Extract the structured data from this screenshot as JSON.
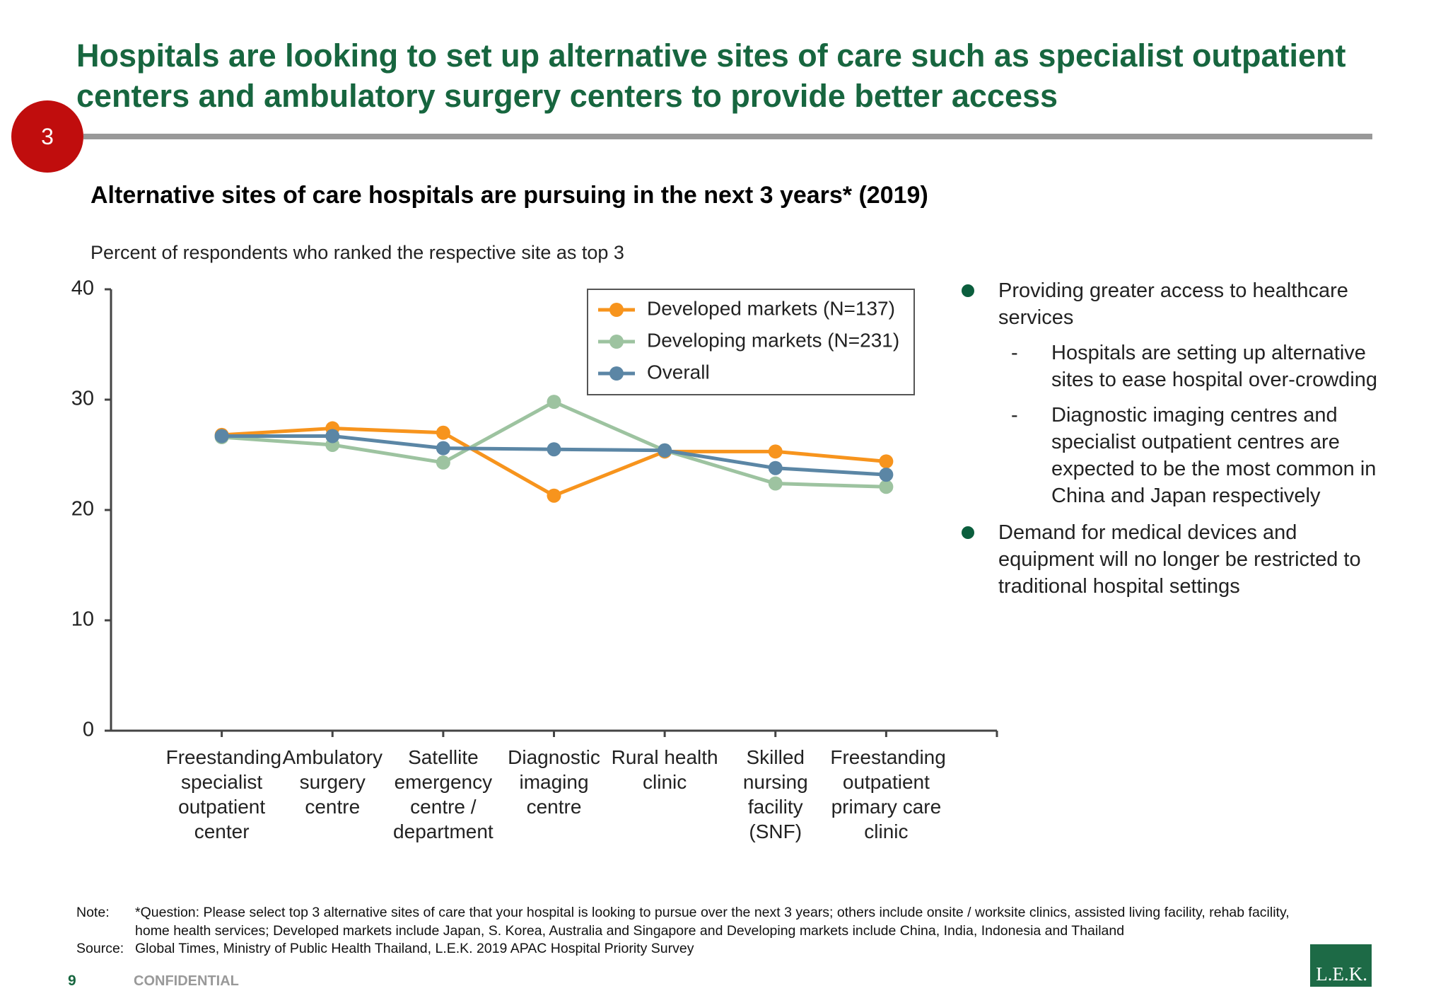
{
  "header": {
    "badge": "3",
    "title": "Hospitals are looking to set up alternative sites of care such as specialist outpatient centers and ambulatory surgery centers to provide better access"
  },
  "chart_data": {
    "type": "line",
    "title": "Alternative sites of care hospitals are pursuing in the next 3 years* (2019)",
    "subtitle": "Percent of respondents who ranked the respective site as top 3",
    "categories": [
      "Freestanding specialist outpatient center",
      "Ambulatory surgery centre",
      "Satellite emergency centre / department",
      "Diagnostic imaging centre",
      "Rural health clinic",
      "Skilled nursing facility (SNF)",
      "Freestanding outpatient primary care clinic"
    ],
    "series": [
      {
        "name": "Developed markets (N=137)",
        "color": "#f7941d",
        "values": [
          26.8,
          27.4,
          27.0,
          21.3,
          25.3,
          25.3,
          24.4
        ]
      },
      {
        "name": "Developing markets (N=231)",
        "color": "#9dc3a0",
        "values": [
          26.6,
          25.9,
          24.3,
          29.8,
          25.4,
          22.4,
          22.1
        ]
      },
      {
        "name": "Overall",
        "color": "#5b86a5",
        "values": [
          26.7,
          26.7,
          25.6,
          25.5,
          25.4,
          23.8,
          23.2
        ]
      }
    ],
    "ylim": [
      0,
      40
    ],
    "yticks": [
      0,
      10,
      20,
      30,
      40
    ],
    "grid": false,
    "legend": "top-right"
  },
  "bullets": [
    {
      "text": "Providing greater access to healthcare services",
      "subs": [
        "Hospitals are setting up alternative sites to ease hospital over-crowding",
        "Diagnostic imaging centres and specialist outpatient centres are expected to be the most common in China and Japan respectively"
      ]
    },
    {
      "text": "Demand for medical devices and equipment will no longer be restricted to traditional hospital settings",
      "subs": []
    }
  ],
  "footer": {
    "note_label": "Note:",
    "note": "*Question: Please select top 3 alternative sites of care that your hospital is looking to pursue over the next 3 years; others include onsite / worksite clinics, assisted living facility, rehab facility, home health services; Developed markets include Japan, S. Korea, Australia and Singapore and Developing markets include China, India, Indonesia and Thailand",
    "source_label": "Source:",
    "source": "Global Times, Ministry of Public Health Thailand, L.E.K. 2019 APAC Hospital Priority Survey",
    "page": "9",
    "confidential": "CONFIDENTIAL",
    "logo": "L.E.K."
  }
}
